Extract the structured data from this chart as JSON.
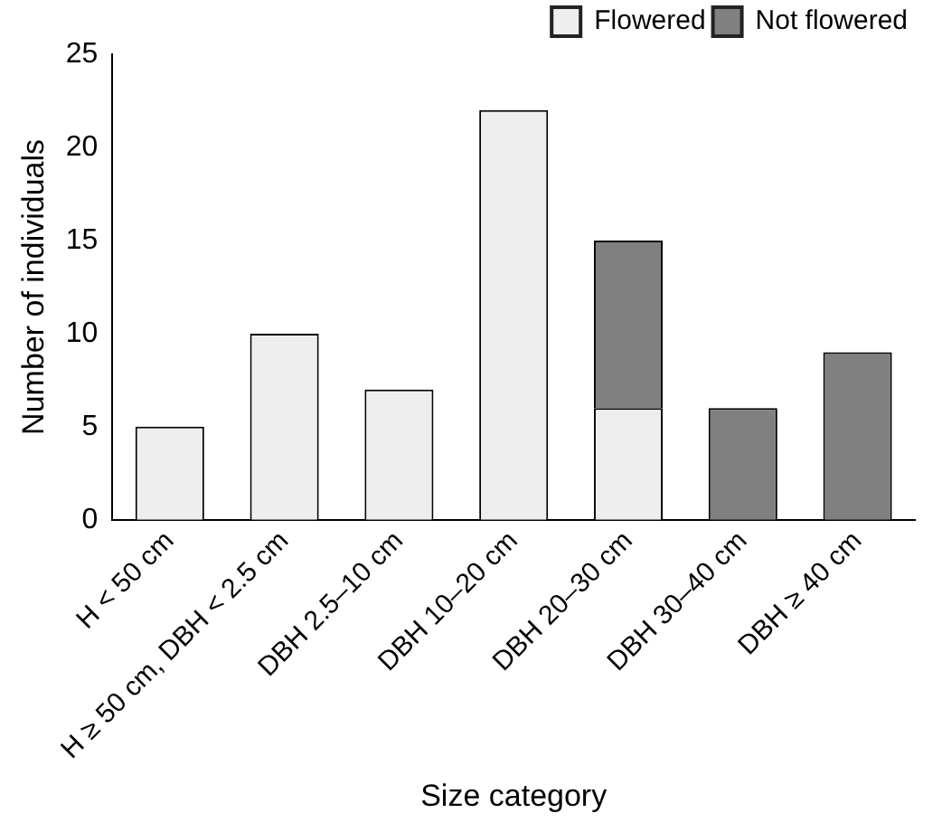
{
  "chart_data": {
    "type": "bar",
    "stacked": true,
    "xlabel": "Size category",
    "ylabel": "Number of individuals",
    "categories": [
      "H < 50 cm",
      "H ≥ 50 cm, DBH < 2.5 cm",
      "DBH 2.5–10 cm",
      "DBH 10–20 cm",
      "DBH 20–30 cm",
      "DBH 30–40 cm",
      "DBH ≥ 40 cm"
    ],
    "series": [
      {
        "name": "Flowered",
        "color": "#eeeeee",
        "values": [
          5,
          10,
          7,
          22,
          6,
          null,
          null
        ]
      },
      {
        "name": "Not flowered",
        "color": "#808080",
        "values": [
          null,
          null,
          null,
          null,
          9,
          6,
          9
        ]
      }
    ],
    "ylim": [
      0,
      25
    ],
    "yticks": [
      0,
      5,
      10,
      15,
      20,
      25
    ],
    "grid": false,
    "legend": "top right"
  }
}
